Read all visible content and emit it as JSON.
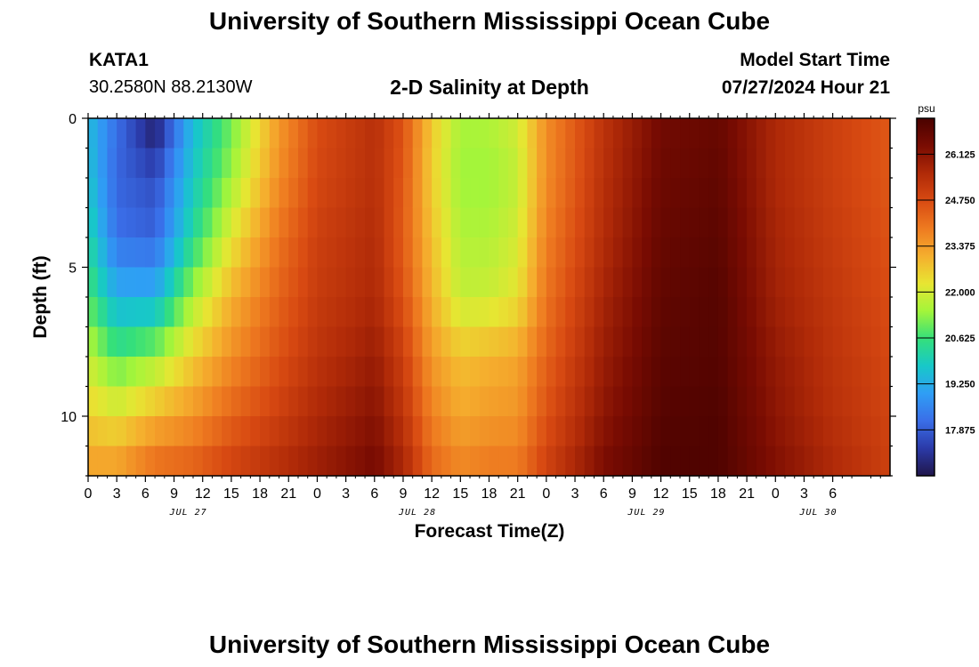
{
  "header": {
    "title": "University of Southern Mississippi Ocean Cube",
    "station_id": "KATA1",
    "station_coords": "30.2580N  88.2130W",
    "plot_title": "2-D Salinity at Depth",
    "model_label": "Model Start Time",
    "model_time": "07/27/2024 Hour 21"
  },
  "footer": {
    "title": "University of Southern Mississippi Ocean Cube"
  },
  "chart_data": {
    "type": "heatmap",
    "xlabel": "Forecast Time(Z)",
    "ylabel": "Depth (ft)",
    "x_hours_from_jul27_00": [
      0,
      84
    ],
    "x_tick_labels": [
      "0",
      "3",
      "6",
      "9",
      "12",
      "15",
      "18",
      "21",
      "0",
      "3",
      "6",
      "9",
      "12",
      "15",
      "18",
      "21",
      "0",
      "3",
      "6",
      "9",
      "12",
      "15",
      "18",
      "21",
      "0",
      "3",
      "6"
    ],
    "date_labels": [
      {
        "label": "JUL 27",
        "tick_index": 3.5
      },
      {
        "label": "JUL 28",
        "tick_index": 11.5
      },
      {
        "label": "JUL 29",
        "tick_index": 19.5
      },
      {
        "label": "JUL 30",
        "tick_index": 25.5
      }
    ],
    "ylim": [
      0,
      12
    ],
    "y_ticks": [
      "0",
      "5",
      "10"
    ],
    "colorbar": {
      "unit": "psu",
      "range": [
        16.5,
        27.2
      ],
      "tick_labels": [
        "26.125",
        "24.750",
        "23.375",
        "22.000",
        "20.625",
        "19.250",
        "17.875"
      ],
      "tick_values": [
        26.125,
        24.75,
        23.375,
        22.0,
        20.625,
        19.25,
        17.875
      ]
    },
    "salinity_profiles_psu": {
      "depths_ft": [
        0,
        2,
        4,
        6,
        8,
        10,
        12
      ],
      "columns": [
        {
          "hour": 0,
          "values": [
            19.5,
            19.7,
            20.2,
            20.8,
            21.8,
            22.6,
            23.4
          ]
        },
        {
          "hour": 3,
          "values": [
            18.2,
            18.0,
            18.2,
            19.3,
            20.8,
            22.3,
            23.5
          ]
        },
        {
          "hour": 7,
          "values": [
            16.6,
            17.6,
            18.0,
            19.3,
            21.4,
            23.0,
            24.3
          ]
        },
        {
          "hour": 11,
          "values": [
            19.5,
            19.8,
            20.3,
            21.5,
            22.6,
            23.5,
            24.5
          ]
        },
        {
          "hour": 15,
          "values": [
            21.0,
            21.4,
            22.2,
            23.0,
            23.6,
            24.3,
            25.0
          ]
        },
        {
          "hour": 20,
          "values": [
            23.4,
            23.6,
            24.0,
            24.3,
            24.6,
            25.0,
            25.5
          ]
        },
        {
          "hour": 24,
          "values": [
            24.7,
            24.8,
            25.0,
            25.1,
            25.3,
            25.6,
            25.9
          ]
        },
        {
          "hour": 30,
          "values": [
            25.4,
            25.4,
            25.5,
            25.6,
            25.9,
            26.2,
            26.5
          ]
        },
        {
          "hour": 33,
          "values": [
            24.6,
            24.5,
            24.4,
            24.6,
            25.0,
            25.3,
            25.7
          ]
        },
        {
          "hour": 36,
          "values": [
            22.7,
            22.6,
            22.8,
            23.0,
            23.4,
            23.8,
            24.3
          ]
        },
        {
          "hour": 39,
          "values": [
            21.5,
            21.4,
            21.6,
            21.8,
            22.8,
            23.2,
            23.8
          ]
        },
        {
          "hour": 42,
          "values": [
            21.6,
            21.4,
            21.6,
            21.9,
            23.0,
            23.4,
            24.0
          ]
        },
        {
          "hour": 45,
          "values": [
            22.0,
            21.8,
            22.0,
            22.3,
            23.2,
            23.5,
            24.0
          ]
        },
        {
          "hour": 48,
          "values": [
            23.6,
            23.6,
            23.8,
            24.0,
            24.3,
            24.6,
            25.0
          ]
        },
        {
          "hour": 54,
          "values": [
            25.3,
            25.4,
            25.5,
            25.7,
            25.9,
            26.1,
            26.4
          ]
        },
        {
          "hour": 60,
          "values": [
            26.5,
            26.6,
            26.7,
            26.8,
            26.9,
            27.0,
            27.1
          ]
        },
        {
          "hour": 66,
          "values": [
            26.7,
            26.8,
            26.9,
            27.0,
            27.0,
            27.1,
            27.1
          ]
        },
        {
          "hour": 72,
          "values": [
            25.6,
            25.6,
            25.7,
            25.8,
            26.0,
            26.1,
            26.3
          ]
        },
        {
          "hour": 78,
          "values": [
            25.0,
            25.0,
            25.1,
            25.2,
            25.3,
            25.4,
            25.6
          ]
        },
        {
          "hour": 84,
          "values": [
            24.5,
            24.5,
            24.6,
            24.7,
            24.8,
            24.9,
            25.0
          ]
        }
      ]
    },
    "colors": {
      "scale": [
        "#20164a",
        "#2b3aa8",
        "#3a6ee8",
        "#2f9ef5",
        "#17c8c8",
        "#35e07a",
        "#a4f53a",
        "#e8e532",
        "#f5ae2e",
        "#ee7a20",
        "#d84a12",
        "#b02a08",
        "#7a0c02",
        "#4a0200"
      ]
    }
  }
}
